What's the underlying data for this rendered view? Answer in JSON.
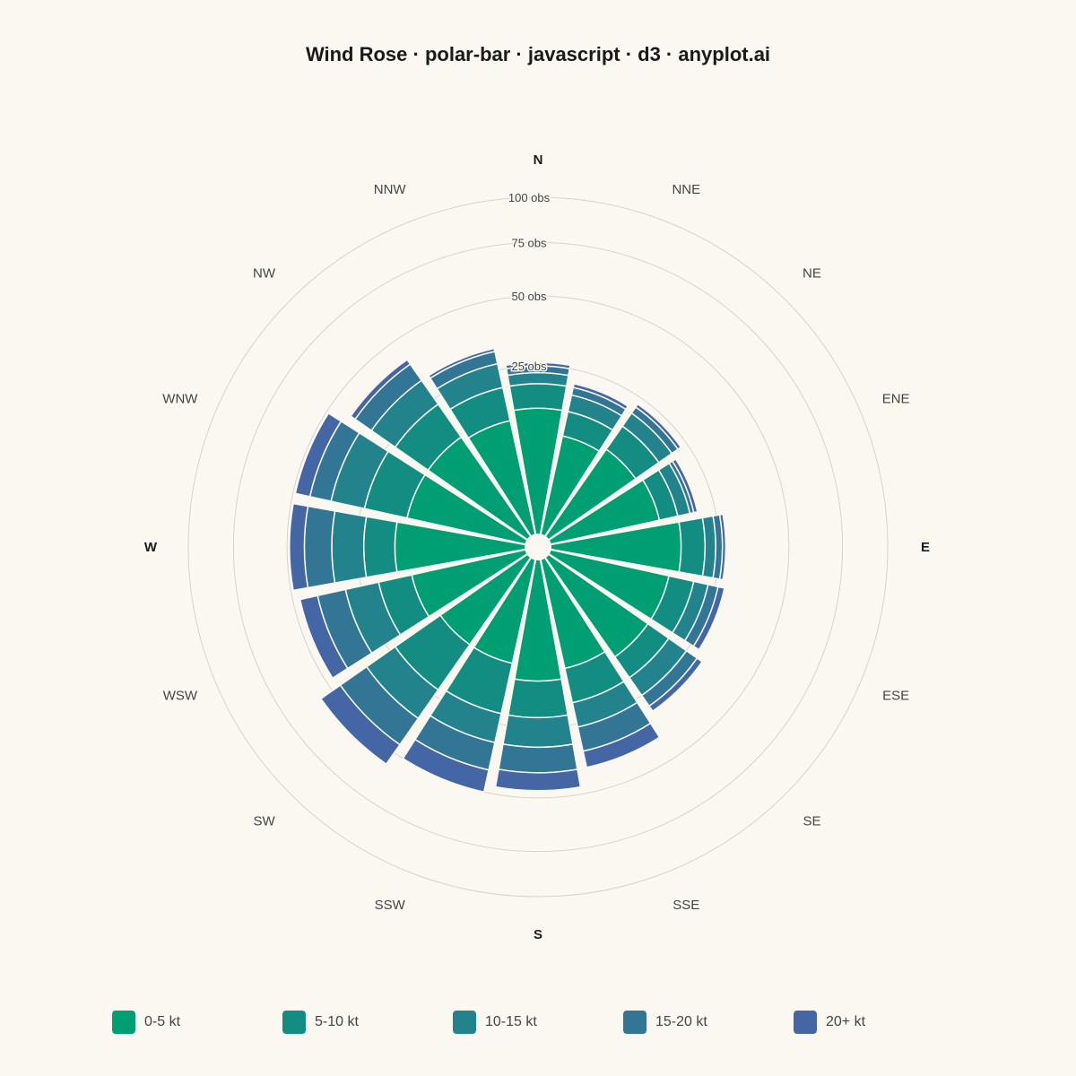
{
  "title": "Wind Rose · polar-bar · javascript · d3 · anyplot.ai",
  "chart_data": {
    "type": "polar-bar",
    "title": "Wind Rose · polar-bar · javascript · d3 · anyplot.ai",
    "stacked": true,
    "directions": [
      "N",
      "NNE",
      "NE",
      "ENE",
      "E",
      "ESE",
      "SE",
      "SSE",
      "S",
      "SSW",
      "SW",
      "WSW",
      "W",
      "WNW",
      "NW",
      "NNW"
    ],
    "cardinals": [
      "N",
      "E",
      "S",
      "W"
    ],
    "radial_ticks": [
      25,
      50,
      75,
      100
    ],
    "radial_tick_labels": [
      "25 obs",
      "50 obs",
      "75 obs",
      "100 obs"
    ],
    "radial_max": 100,
    "grid": true,
    "legend_position": "bottom",
    "series": [
      {
        "name": "0-5 kt",
        "color": "#009E73",
        "values": [
          14,
          9,
          10,
          11,
          15,
          13,
          13,
          11,
          13,
          10,
          10,
          12,
          15,
          13,
          13,
          12
        ]
      },
      {
        "name": "5-10 kt",
        "color": "#138D81",
        "values": [
          6,
          5,
          6,
          4,
          6,
          6,
          6,
          8,
          9,
          12,
          13,
          8,
          8,
          11,
          10,
          8
        ]
      },
      {
        "name": "10-15 kt",
        "color": "#22838D",
        "values": [
          3,
          4,
          4,
          3,
          3,
          4,
          6,
          7,
          9,
          9,
          11,
          10,
          10,
          11,
          9,
          7
        ]
      },
      {
        "name": "15-20 kt",
        "color": "#327594",
        "values": [
          2,
          2,
          2,
          1,
          2,
          3,
          4,
          8,
          9,
          10,
          12,
          10,
          10,
          8,
          7,
          4
        ]
      },
      {
        "name": "20+ kt",
        "color": "#4566A4",
        "values": [
          1,
          1,
          1,
          1,
          1,
          2,
          2,
          6,
          7,
          9,
          10,
          7,
          6,
          6,
          2,
          1
        ]
      }
    ]
  }
}
